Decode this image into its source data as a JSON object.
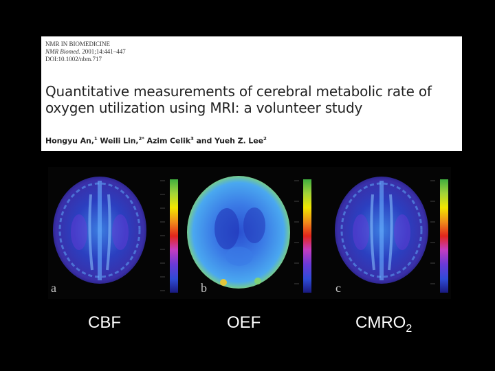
{
  "paper": {
    "journal_line1": "NMR IN BIOMEDICINE",
    "journal_line2_italic": "NMR Biomed.",
    "journal_line2_rest": " 2001;14:441–447",
    "journal_line3": "DOI:10.1002/nbm.717",
    "title_line1": "Quantitative measurements of cerebral metabolic rate of",
    "title_line2": "oxygen utilization using MRI: a volunteer study",
    "author1": "Hongyu An,",
    "author1_sup": "1",
    "author2": " Weili Lin,",
    "author2_sup": "2*",
    "author3": " Azim Celik",
    "author3_sup": "3",
    "author4": " and Yueh Z. Lee",
    "author4_sup": "2"
  },
  "figure": {
    "panels": [
      {
        "label": "a",
        "caption": "CBF"
      },
      {
        "label": "b",
        "caption": "OEF"
      },
      {
        "label": "c",
        "caption_main": "CMRO",
        "caption_sub": "2"
      }
    ]
  },
  "colors": {
    "background": "#000000",
    "scale_top": "#3fae3f",
    "scale_mid": "#f2e600",
    "scale_red": "#e2261c",
    "scale_blue": "#2e4bd6"
  }
}
